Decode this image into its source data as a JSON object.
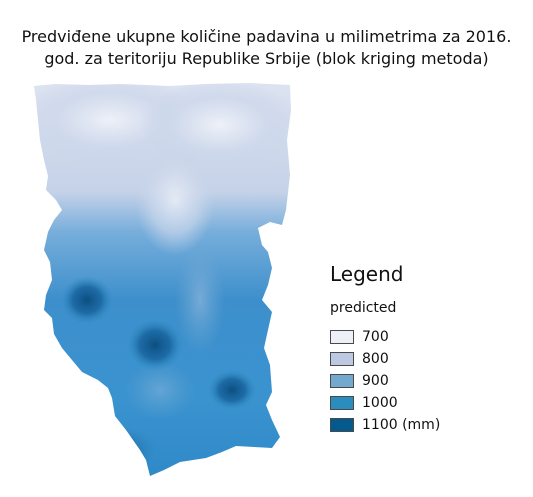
{
  "title": {
    "line1": "Predviđene ukupne količine padavina u milimetrima za 2016.",
    "line2": "god. za teritoriju Republike Srbije (blok kriging metoda)"
  },
  "legend": {
    "heading": "Legend",
    "field": "predicted",
    "items": [
      {
        "label": "700",
        "color": "#eef0f8"
      },
      {
        "label": "800",
        "color": "#bdc9e3"
      },
      {
        "label": "900",
        "color": "#74a9cf"
      },
      {
        "label": "1000",
        "color": "#2b8cbe"
      },
      {
        "label": "1100 (mm)",
        "color": "#045a8d"
      }
    ]
  }
}
